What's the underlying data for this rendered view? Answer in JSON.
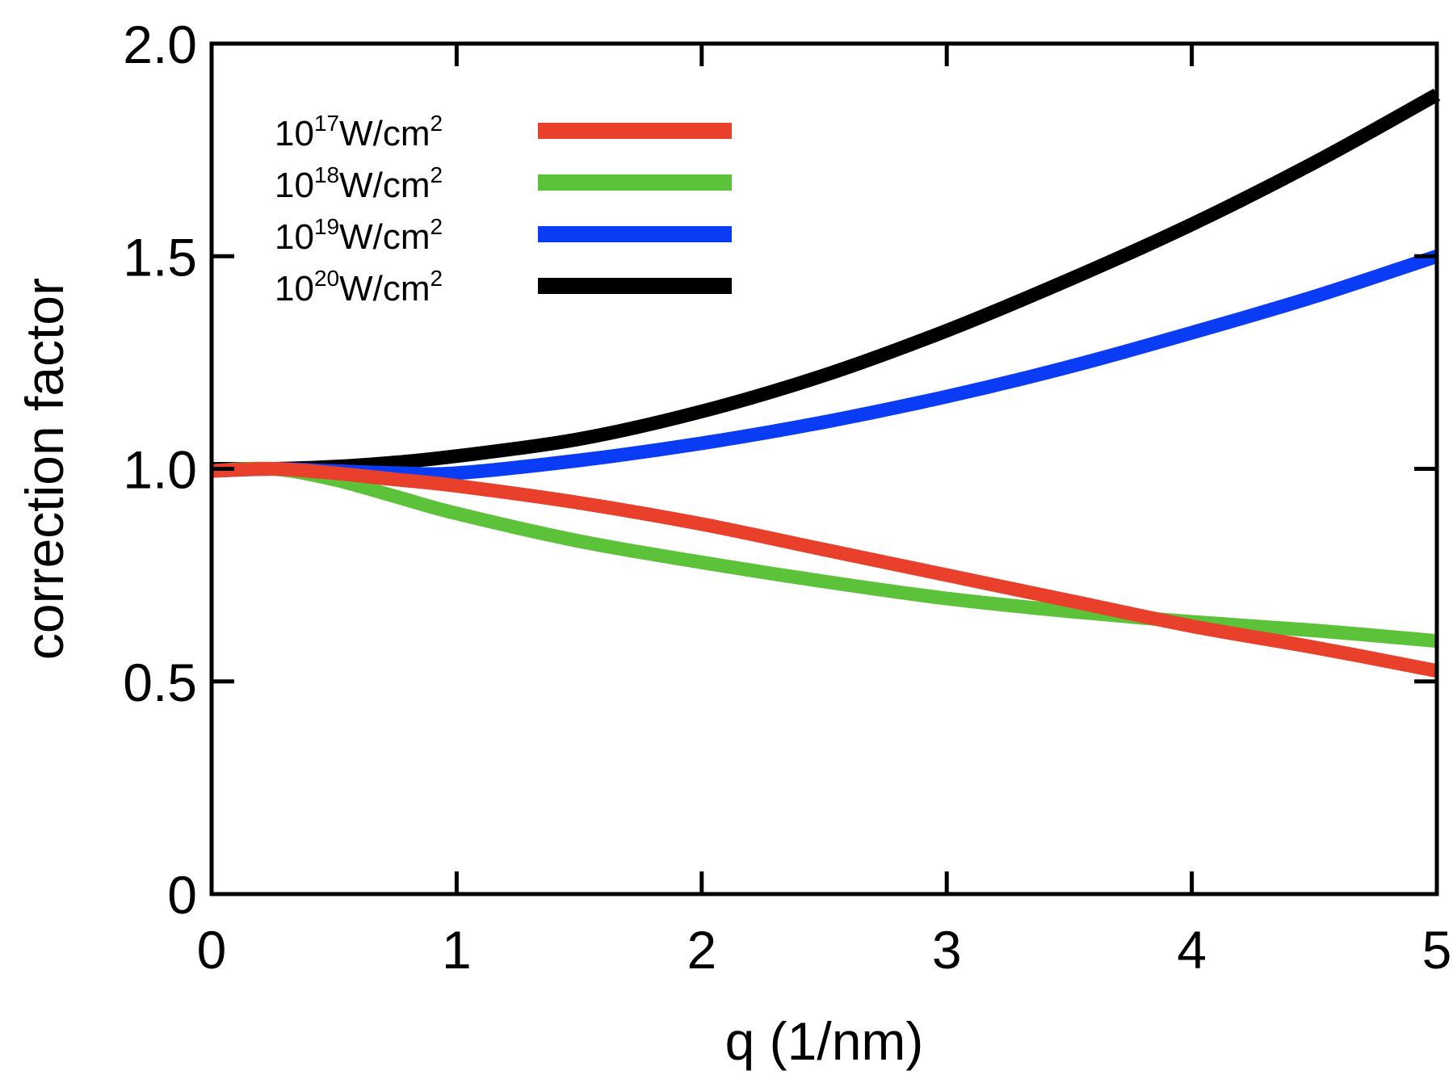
{
  "chart_data": {
    "type": "line",
    "xlabel": "q (1/nm)",
    "ylabel": "correction factor",
    "xlim": [
      0,
      5
    ],
    "ylim": [
      0,
      2.0
    ],
    "xticks": [
      0,
      1,
      2,
      3,
      4,
      5
    ],
    "xtick_labels": [
      "0",
      "1",
      "2",
      "3",
      "4",
      "5"
    ],
    "yticks": [
      0,
      0.5,
      1.0,
      1.5,
      2.0
    ],
    "ytick_labels": [
      "0",
      "0.5",
      "1.0",
      "1.5",
      "2.0"
    ],
    "grid": false,
    "legend_position": "top-left",
    "series": [
      {
        "legend": {
          "base": "10",
          "exp": "17",
          "unit": "W/cm",
          "unit_exp": "2"
        },
        "color": "#e8402a",
        "x": [
          0,
          0.25,
          0.5,
          0.75,
          1.0,
          1.5,
          2.0,
          2.5,
          3.0,
          3.5,
          4.0,
          4.5,
          5.0
        ],
        "y": [
          0.995,
          1.0,
          0.99,
          0.975,
          0.96,
          0.92,
          0.87,
          0.81,
          0.75,
          0.69,
          0.63,
          0.58,
          0.525
        ]
      },
      {
        "legend": {
          "base": "10",
          "exp": "18",
          "unit": "W/cm",
          "unit_exp": "2"
        },
        "color": "#5cc23a",
        "x": [
          0,
          0.25,
          0.5,
          0.75,
          1.0,
          1.5,
          2.0,
          2.5,
          3.0,
          3.5,
          4.0,
          4.5,
          5.0
        ],
        "y": [
          0.995,
          1.0,
          0.975,
          0.935,
          0.895,
          0.83,
          0.78,
          0.735,
          0.695,
          0.665,
          0.64,
          0.62,
          0.595
        ]
      },
      {
        "legend": {
          "base": "10",
          "exp": "19",
          "unit": "W/cm",
          "unit_exp": "2"
        },
        "color": "#0b3cf5",
        "x": [
          0,
          0.25,
          0.5,
          0.75,
          1.0,
          1.5,
          2.0,
          2.5,
          3.0,
          3.5,
          4.0,
          4.5,
          5.0
        ],
        "y": [
          0.995,
          1.0,
          0.995,
          0.99,
          0.99,
          1.02,
          1.06,
          1.11,
          1.17,
          1.24,
          1.32,
          1.405,
          1.5
        ]
      },
      {
        "legend": {
          "base": "10",
          "exp": "20",
          "unit": "W/cm",
          "unit_exp": "2"
        },
        "color": "#000000",
        "x": [
          0,
          0.25,
          0.5,
          0.75,
          1.0,
          1.5,
          2.0,
          2.5,
          3.0,
          3.5,
          4.0,
          4.5,
          5.0
        ],
        "y": [
          1.0,
          1.0,
          1.005,
          1.015,
          1.03,
          1.07,
          1.135,
          1.22,
          1.325,
          1.445,
          1.575,
          1.72,
          1.88
        ]
      }
    ]
  }
}
